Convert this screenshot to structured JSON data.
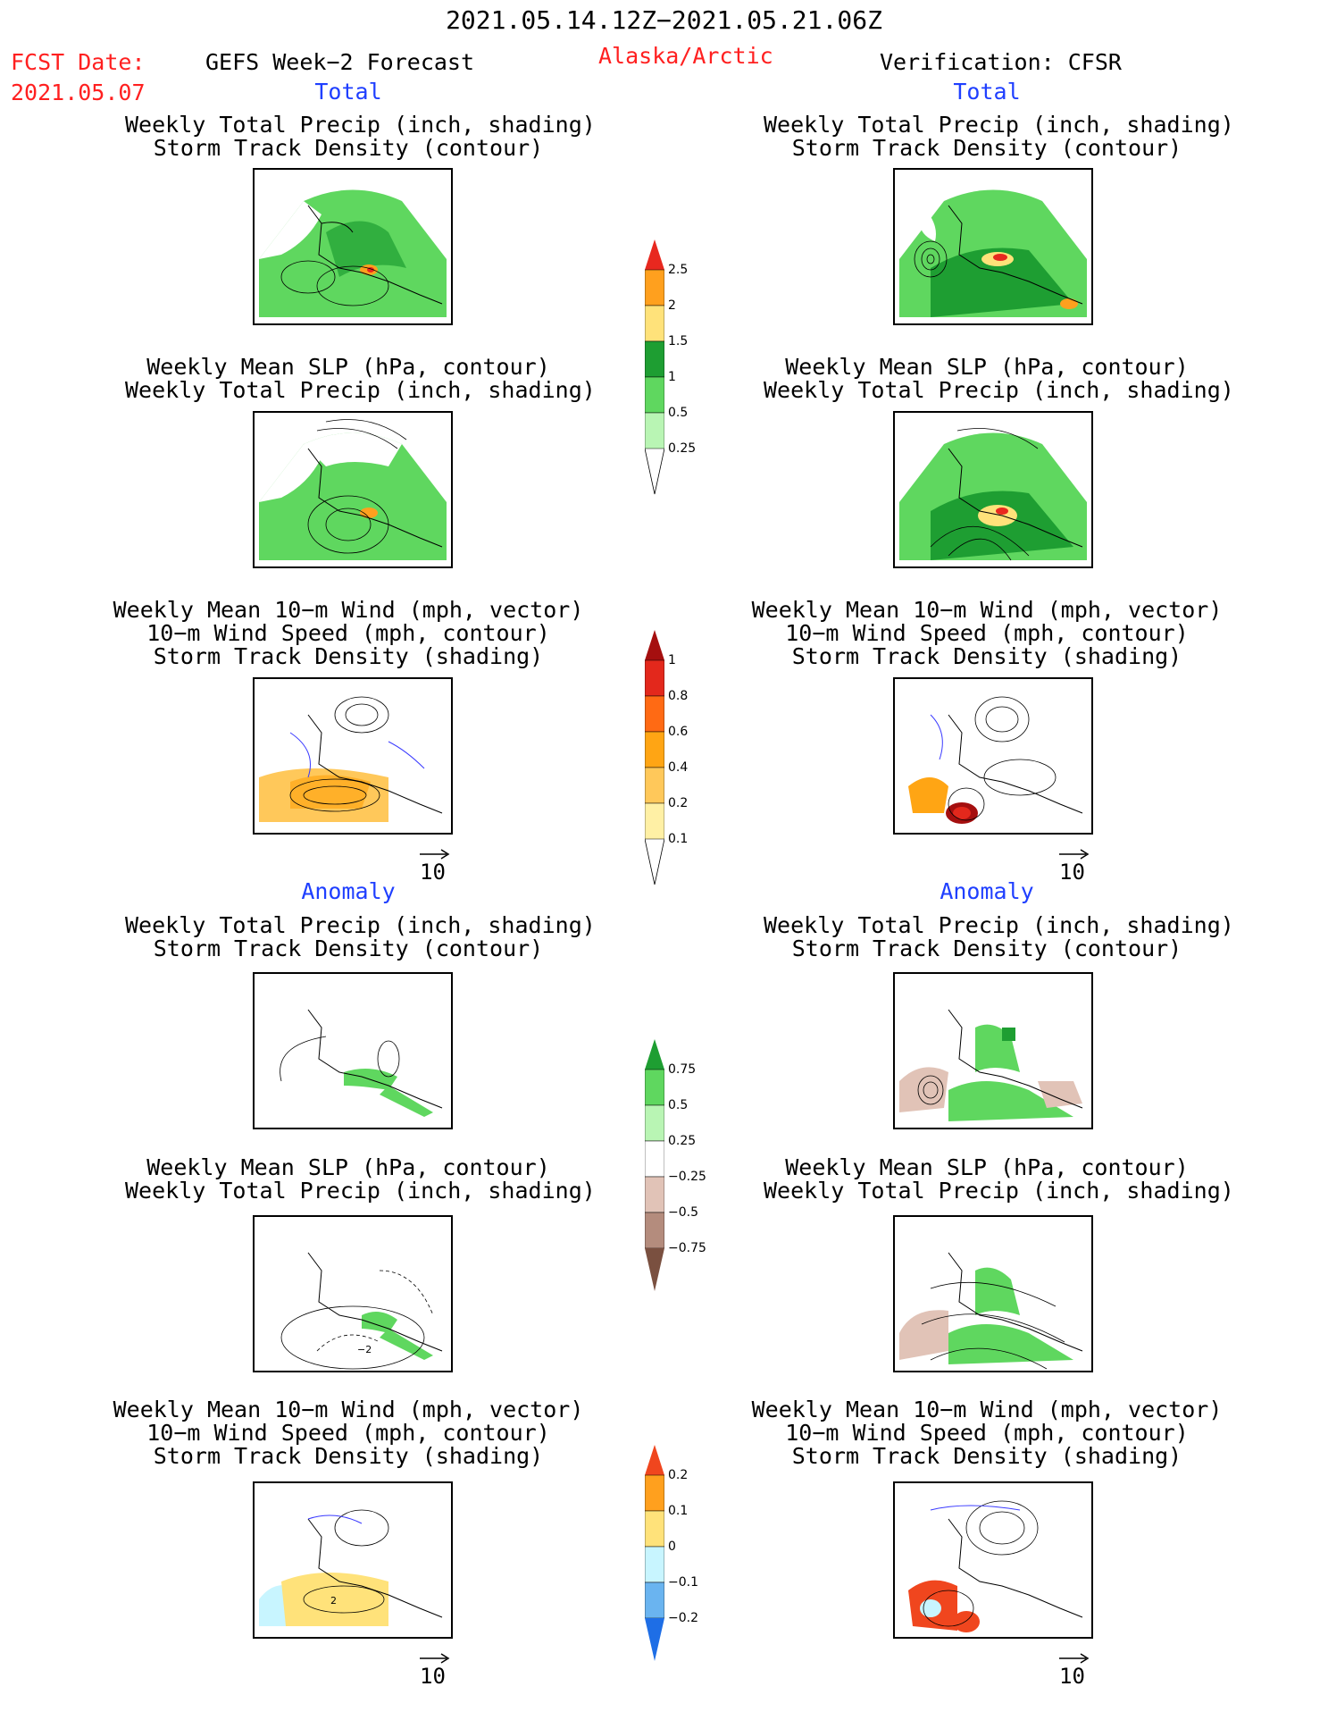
{
  "header": {
    "date_range": "2021.05.14.12Z−2021.05.21.06Z",
    "fcst_label": "FCST Date:",
    "fcst_date": "2021.05.07",
    "forecast_title": "GEFS Week−2 Forecast",
    "region": "Alaska/Arctic",
    "verification": "Verification: CFSR"
  },
  "sections": {
    "total": "Total",
    "anomaly": "Anomaly"
  },
  "titles": {
    "precip_track": [
      "Weekly Total Precip (inch, shading)",
      "Storm Track Density (contour)"
    ],
    "slp_precip": [
      "Weekly Mean SLP (hPa, contour)",
      "Weekly Total Precip (inch, shading)"
    ],
    "wind_track": [
      "Weekly Mean 10−m Wind (mph, vector)",
      "10−m Wind Speed (mph, contour)",
      "Storm Track Density (shading)"
    ]
  },
  "vector_ref": "10",
  "colorbars": {
    "precip_total": {
      "labels": [
        "2.5",
        "2",
        "1.5",
        "1",
        "0.5",
        "0.25"
      ],
      "colors": [
        "#e8281f",
        "#ffa01e",
        "#ffe27a",
        "#1e9e32",
        "#5fd75f",
        "#b9f5b4"
      ]
    },
    "track_total": {
      "labels": [
        "1",
        "0.8",
        "0.6",
        "0.4",
        "0.2",
        "0.1"
      ],
      "colors": [
        "#a50f0f",
        "#e3281c",
        "#ff6a14",
        "#ffa514",
        "#ffc85a",
        "#fff0a5"
      ]
    },
    "precip_anom": {
      "labels": [
        "0.75",
        "0.5",
        "0.25",
        "−0.25",
        "−0.5",
        "−0.75"
      ],
      "colors": [
        "#1e9e32",
        "#5fd75f",
        "#b9f5b4",
        "#ffffff",
        "#e1c3b7",
        "#b48c7d",
        "#7a5040"
      ]
    },
    "track_anom": {
      "labels": [
        "0.2",
        "0.1",
        "0",
        "−0.1",
        "−0.2"
      ],
      "colors": [
        "#f0461e",
        "#ffa01e",
        "#ffe27a",
        "#c8f5ff",
        "#6ab4f0",
        "#1e6ee6"
      ]
    },
    "contour_markers": {
      "anomaly_slp": "−2",
      "anomaly_wind": "2"
    }
  }
}
